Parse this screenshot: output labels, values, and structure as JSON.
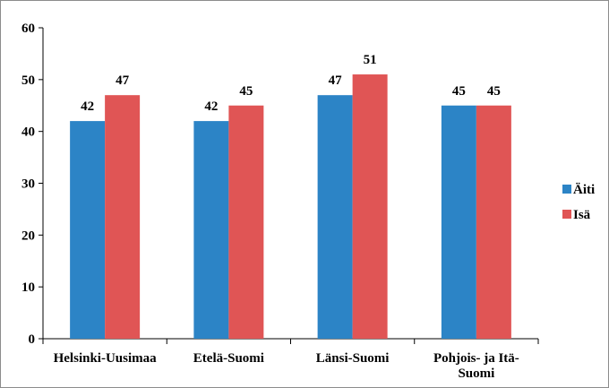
{
  "colors": {
    "aiti": "#2c84c6",
    "isa": "#e05555",
    "axis": "#000000",
    "border": "#8c8c8c"
  },
  "chart_data": {
    "type": "bar",
    "title": "",
    "xlabel": "",
    "ylabel": "",
    "ylim": [
      0,
      60
    ],
    "yticks": [
      0,
      10,
      20,
      30,
      40,
      50,
      60
    ],
    "categories": [
      [
        "Helsinki-Uusimaa"
      ],
      [
        "Etelä-Suomi"
      ],
      [
        "Länsi-Suomi"
      ],
      [
        "Pohjois- ja Itä-",
        "Suomi"
      ]
    ],
    "series": [
      {
        "name": "Äiti",
        "color": "#2c84c6",
        "values": [
          42,
          42,
          47,
          45
        ]
      },
      {
        "name": "Isä",
        "color": "#e05555",
        "values": [
          47,
          45,
          51,
          45
        ]
      }
    ],
    "grid": false,
    "data_labels": true,
    "legend": "right"
  }
}
